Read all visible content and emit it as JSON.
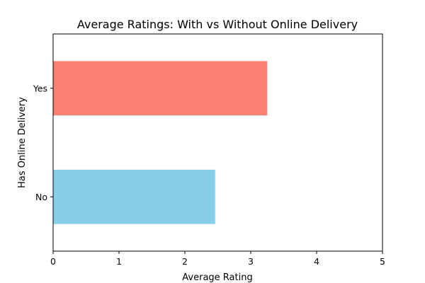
{
  "chart_data": {
    "type": "bar",
    "orientation": "horizontal",
    "title": "Average Ratings: With vs Without Online Delivery",
    "xlabel": "Average Rating",
    "ylabel": "Has Online Delivery",
    "categories": [
      "No",
      "Yes"
    ],
    "values": [
      2.46,
      3.25
    ],
    "colors": [
      "#87CEEB",
      "#FA8072"
    ],
    "xlim": [
      0,
      5
    ],
    "xticks": [
      "0",
      "1",
      "2",
      "3",
      "4",
      "5"
    ],
    "grid": false,
    "legend": "none"
  }
}
